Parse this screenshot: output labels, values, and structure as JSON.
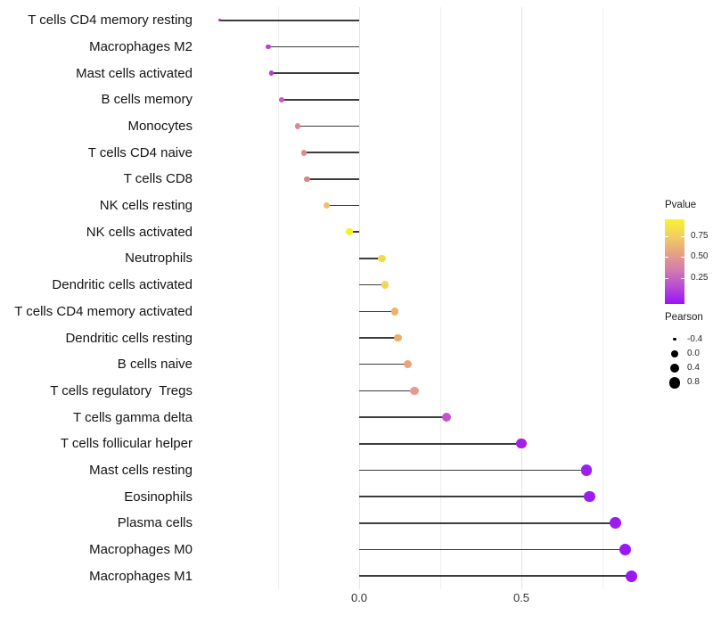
{
  "chart_data": {
    "type": "lollipop",
    "orientation": "horizontal",
    "title": "",
    "xlabel": "",
    "ylabel": "",
    "xlim": [
      -0.5,
      0.9
    ],
    "grid": "vertical-only",
    "x_ticks": [
      {
        "value": 0.0,
        "label": "0.0"
      },
      {
        "value": 0.5,
        "label": "0.5"
      }
    ],
    "x_minor_breaks": [
      -0.25,
      0.25,
      0.75
    ],
    "points": [
      {
        "label": "T cells CD4 memory resting",
        "pearson": -0.43,
        "dot_color": "#9929EE"
      },
      {
        "label": "Macrophages M2",
        "pearson": -0.28,
        "dot_color": "#BA40D2"
      },
      {
        "label": "Mast cells activated",
        "pearson": -0.27,
        "dot_color": "#B83ED3"
      },
      {
        "label": "B cells memory",
        "pearson": -0.24,
        "dot_color": "#C75BC5"
      },
      {
        "label": "Monocytes",
        "pearson": -0.19,
        "dot_color": "#DC8A94"
      },
      {
        "label": "T cells CD4 naive",
        "pearson": -0.17,
        "dot_color": "#DD8D87"
      },
      {
        "label": "T cells CD8",
        "pearson": -0.16,
        "dot_color": "#DA877D"
      },
      {
        "label": "NK cells resting",
        "pearson": -0.1,
        "dot_color": "#EDC266"
      },
      {
        "label": "NK cells activated",
        "pearson": -0.03,
        "dot_color": "#F5F02C"
      },
      {
        "label": "Neutrophils",
        "pearson": 0.07,
        "dot_color": "#F1DC50"
      },
      {
        "label": "Dendritic cells activated",
        "pearson": 0.08,
        "dot_color": "#F0D75B"
      },
      {
        "label": "T cells CD4 memory activated",
        "pearson": 0.11,
        "dot_color": "#EDB26B"
      },
      {
        "label": "Dendritic cells resting",
        "pearson": 0.12,
        "dot_color": "#EBAC6E"
      },
      {
        "label": "B cells naive",
        "pearson": 0.15,
        "dot_color": "#E8A47B"
      },
      {
        "label": "T cells regulatory  Tregs",
        "pearson": 0.17,
        "dot_color": "#E79A93"
      },
      {
        "label": "T cells gamma delta",
        "pearson": 0.27,
        "dot_color": "#C553CC"
      },
      {
        "label": "T cells follicular helper",
        "pearson": 0.5,
        "dot_color": "#A520E9"
      },
      {
        "label": "Mast cells resting",
        "pearson": 0.7,
        "dot_color": "#9D1FF0"
      },
      {
        "label": "Eosinophils",
        "pearson": 0.71,
        "dot_color": "#9C1DF1"
      },
      {
        "label": "Plasma cells",
        "pearson": 0.79,
        "dot_color": "#9B1BF2"
      },
      {
        "label": "Macrophages M0",
        "pearson": 0.82,
        "dot_color": "#9A19F3"
      },
      {
        "label": "Macrophages M1",
        "pearson": 0.84,
        "dot_color": "#9917F4"
      }
    ],
    "segment_color": "#3c3c3c",
    "legend_pvalue": {
      "title": "Pvalue",
      "tick_labels": [
        "0.75",
        "0.50",
        "0.25"
      ],
      "tick_values": [
        0.75,
        0.5,
        0.25
      ],
      "bar_top_value": 0.95,
      "bar_bottom_value": -0.05,
      "gradient_stops": [
        "#F8F42F",
        "#F2CE62",
        "#E6A284",
        "#D47BB0",
        "#B64BD6",
        "#9813F6"
      ]
    },
    "legend_pearson": {
      "title": "Pearson",
      "item_labels": [
        "-0.4",
        "0.0",
        "0.4",
        "0.8"
      ],
      "item_values": [
        -0.4,
        0.0,
        0.4,
        0.8
      ],
      "dot_color": "#000000"
    }
  }
}
